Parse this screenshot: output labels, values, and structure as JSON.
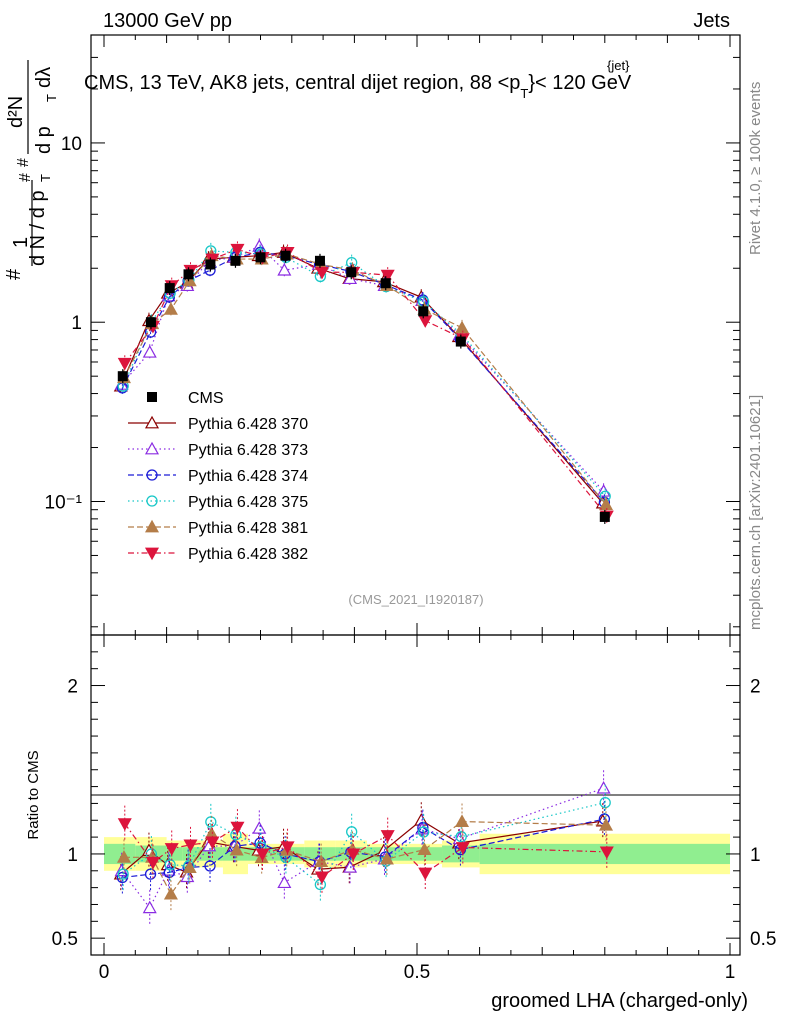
{
  "header": {
    "left": "13000 GeV pp",
    "right": "Jets",
    "title_main": "CMS, 13 TeV, AK8 jets, central dijet region, 88 <p",
    "title_sup": "{jet}",
    "title_sub": "T",
    "title_end": "}< 120 GeV"
  },
  "side": {
    "rivet": "Rivet 4.1.0, ≥ 100k events",
    "mcplots": "mcplots.cern.ch [arXiv:2401.10621]"
  },
  "watermark": "(CMS_2021_I1920187)",
  "ylabel_parts": {
    "hash1": "#",
    "one": "1",
    "dN": "d N / d p",
    "T1": "T",
    "hash2": "#",
    "hash3": "#",
    "d2N": "d²N",
    "dpT": "d p",
    "T2": "T",
    "dlambda": "dλ"
  },
  "chart_data": {
    "type": "line",
    "xlabel": "groomed LHA (charged-only)",
    "ylabel_ratio": "Ratio to CMS",
    "xlim": [
      0,
      1
    ],
    "ylim_main": [
      0.018,
      40
    ],
    "yscale_main": "log",
    "ylim_ratio": [
      0.4,
      2.3
    ],
    "main_yticks": [
      {
        "v": 0.1,
        "label": "10⁻¹"
      },
      {
        "v": 1,
        "label": "1"
      },
      {
        "v": 10,
        "label": "10"
      }
    ],
    "ratio_yticks": [
      {
        "v": 0.5,
        "label": "0.5"
      },
      {
        "v": 1,
        "label": "1"
      },
      {
        "v": 2,
        "label": "2"
      }
    ],
    "xticks": [
      {
        "v": 0,
        "label": "0"
      },
      {
        "v": 0.5,
        "label": "0.5"
      },
      {
        "v": 1,
        "label": "1"
      }
    ],
    "legend_position": "middle-left",
    "x": [
      0.03,
      0.075,
      0.105,
      0.135,
      0.17,
      0.21,
      0.25,
      0.29,
      0.345,
      0.395,
      0.45,
      0.51,
      0.57,
      0.8
    ],
    "data": {
      "name": "CMS",
      "values": [
        0.5,
        1.0,
        1.55,
        1.85,
        2.1,
        2.2,
        2.3,
        2.35,
        2.2,
        1.9,
        1.65,
        1.15,
        0.78,
        0.082
      ]
    },
    "series": [
      {
        "name": "Pythia 6.428 370",
        "color": "#8b0000",
        "marker": "triangle-open",
        "dash": "",
        "values": [
          0.44,
          1.02,
          1.45,
          1.65,
          2.25,
          2.3,
          2.35,
          2.45,
          2.0,
          1.75,
          1.68,
          1.38,
          0.83,
          0.098
        ]
      },
      {
        "name": "Pythia 6.428 373",
        "color": "#8a2be2",
        "marker": "triangle-open",
        "dash": "1.5,3",
        "values": [
          0.45,
          0.68,
          1.4,
          1.6,
          2.2,
          2.3,
          2.65,
          1.95,
          2.1,
          1.75,
          1.6,
          1.32,
          0.85,
          0.114
        ]
      },
      {
        "name": "Pythia 6.428 374",
        "color": "#1c1cd6",
        "marker": "circle-open",
        "dash": "6,3",
        "values": [
          0.43,
          0.88,
          1.38,
          1.7,
          1.95,
          2.3,
          2.45,
          2.35,
          2.1,
          1.92,
          1.62,
          1.33,
          0.8,
          0.099
        ]
      },
      {
        "name": "Pythia 6.428 375",
        "color": "#17c7c7",
        "marker": "circle-open",
        "dash": "1.5,3",
        "values": [
          0.44,
          1.0,
          1.45,
          1.72,
          2.5,
          2.45,
          2.4,
          2.3,
          1.8,
          2.15,
          1.58,
          1.3,
          0.86,
          0.107
        ]
      },
      {
        "name": "Pythia 6.428 381",
        "color": "#b47d49",
        "marker": "triangle-filled",
        "dash": "6,3",
        "values": [
          0.49,
          0.98,
          1.18,
          1.7,
          2.35,
          2.25,
          2.25,
          2.4,
          2.1,
          1.95,
          1.6,
          1.18,
          0.93,
          0.096
        ]
      },
      {
        "name": "Pythia 6.428 382",
        "color": "#dc143c",
        "marker": "triangle-down-filled",
        "dash": "6,3,1.5,3",
        "values": [
          0.59,
          0.95,
          1.6,
          1.95,
          2.25,
          2.55,
          2.3,
          2.45,
          1.9,
          1.9,
          1.83,
          1.02,
          0.81,
          0.083
        ]
      }
    ],
    "band_edges": [
      0.0,
      0.05,
      0.1,
      0.125,
      0.15,
      0.19,
      0.23,
      0.27,
      0.32,
      0.37,
      0.42,
      0.48,
      0.54,
      0.6,
      1.0
    ],
    "band_stat": [
      0.06,
      0.05,
      0.04,
      0.04,
      0.04,
      0.04,
      0.04,
      0.04,
      0.04,
      0.04,
      0.04,
      0.04,
      0.05,
      0.06
    ],
    "band_total": [
      0.1,
      0.1,
      0.08,
      0.08,
      0.08,
      0.12,
      0.06,
      0.06,
      0.08,
      0.08,
      0.06,
      0.06,
      0.08,
      0.12
    ]
  }
}
